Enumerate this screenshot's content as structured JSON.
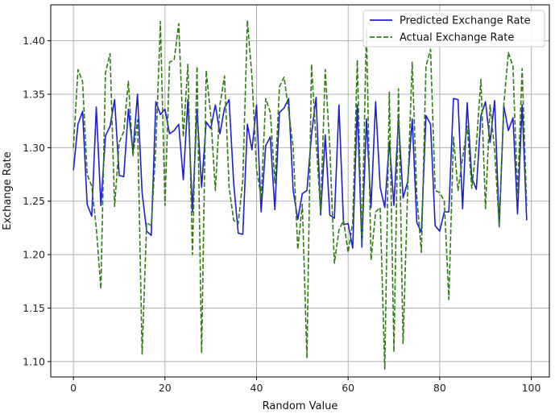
{
  "chart_data": {
    "type": "line",
    "title": "",
    "xlabel": "Random Value",
    "ylabel": "Exchange Rate",
    "xlim": [
      -4.95,
      103.95
    ],
    "ylim": [
      1.0856,
      1.4336
    ],
    "xticks": [
      0,
      20,
      40,
      60,
      80,
      100
    ],
    "yticks": [
      1.1,
      1.15,
      1.2,
      1.25,
      1.3,
      1.35,
      1.4
    ],
    "grid": true,
    "legend_position": "top-right",
    "x": [
      0,
      1,
      2,
      3,
      4,
      5,
      6,
      7,
      8,
      9,
      10,
      11,
      12,
      13,
      14,
      15,
      16,
      17,
      18,
      19,
      20,
      21,
      22,
      23,
      24,
      25,
      26,
      27,
      28,
      29,
      30,
      31,
      32,
      33,
      34,
      35,
      36,
      37,
      38,
      39,
      40,
      41,
      42,
      43,
      44,
      45,
      46,
      47,
      48,
      49,
      50,
      51,
      52,
      53,
      54,
      55,
      56,
      57,
      58,
      59,
      60,
      61,
      62,
      63,
      64,
      65,
      66,
      67,
      68,
      69,
      70,
      71,
      72,
      73,
      74,
      75,
      76,
      77,
      78,
      79,
      80,
      81,
      82,
      83,
      84,
      85,
      86,
      87,
      88,
      89,
      90,
      91,
      92,
      93,
      94,
      95,
      96,
      97,
      98,
      99
    ],
    "series": [
      {
        "name": "Predicted Exchange Rate",
        "color": "#1f1fd1",
        "style": "solid",
        "values": [
          1.279,
          1.322,
          1.334,
          1.247,
          1.236,
          1.338,
          1.246,
          1.311,
          1.32,
          1.345,
          1.274,
          1.273,
          1.336,
          1.296,
          1.35,
          1.258,
          1.222,
          1.218,
          1.343,
          1.331,
          1.336,
          1.313,
          1.316,
          1.322,
          1.27,
          1.345,
          1.24,
          1.336,
          1.263,
          1.324,
          1.318,
          1.34,
          1.313,
          1.337,
          1.345,
          1.267,
          1.22,
          1.219,
          1.322,
          1.298,
          1.34,
          1.24,
          1.302,
          1.31,
          1.242,
          1.333,
          1.337,
          1.346,
          1.26,
          1.233,
          1.257,
          1.26,
          1.312,
          1.347,
          1.237,
          1.312,
          1.237,
          1.234,
          1.34,
          1.228,
          1.229,
          1.206,
          1.34,
          1.207,
          1.327,
          1.244,
          1.343,
          1.263,
          1.244,
          1.306,
          1.246,
          1.327,
          1.253,
          1.268,
          1.327,
          1.23,
          1.221,
          1.33,
          1.322,
          1.227,
          1.222,
          1.24,
          1.24,
          1.346,
          1.345,
          1.243,
          1.342,
          1.272,
          1.261,
          1.33,
          1.343,
          1.305,
          1.344,
          1.226,
          1.339,
          1.316,
          1.328,
          1.238,
          1.34,
          1.232
        ]
      },
      {
        "name": "Actual Exchange Rate",
        "color": "#2e7d12",
        "style": "dashed",
        "values": [
          1.3,
          1.373,
          1.362,
          1.275,
          1.264,
          1.225,
          1.168,
          1.37,
          1.388,
          1.245,
          1.305,
          1.315,
          1.362,
          1.292,
          1.326,
          1.107,
          1.23,
          1.227,
          1.3,
          1.418,
          1.246,
          1.38,
          1.382,
          1.416,
          1.31,
          1.378,
          1.2,
          1.376,
          1.108,
          1.372,
          1.33,
          1.26,
          1.34,
          1.367,
          1.263,
          1.232,
          1.229,
          1.27,
          1.419,
          1.366,
          1.28,
          1.253,
          1.346,
          1.333,
          1.267,
          1.357,
          1.366,
          1.335,
          1.3,
          1.205,
          1.247,
          1.103,
          1.378,
          1.306,
          1.24,
          1.373,
          1.3,
          1.192,
          1.223,
          1.232,
          1.202,
          1.23,
          1.382,
          1.21,
          1.411,
          1.195,
          1.24,
          1.244,
          1.093,
          1.352,
          1.109,
          1.355,
          1.117,
          1.26,
          1.38,
          1.255,
          1.202,
          1.376,
          1.392,
          1.26,
          1.258,
          1.25,
          1.158,
          1.31,
          1.26,
          1.29,
          1.32,
          1.262,
          1.302,
          1.364,
          1.243,
          1.34,
          1.298,
          1.226,
          1.34,
          1.389,
          1.376,
          1.256,
          1.374,
          1.245
        ]
      }
    ]
  }
}
